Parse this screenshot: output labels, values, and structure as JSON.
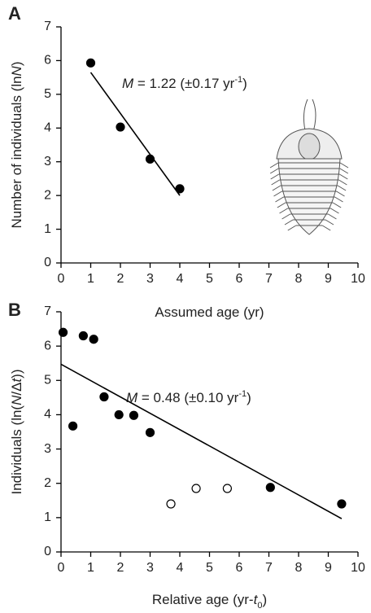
{
  "chart_data": [
    {
      "type": "scatter",
      "panel_label": "A",
      "xlabel": [
        {
          "text": "Assumed age (yr)"
        }
      ],
      "ylabel": [
        {
          "text": "Number of individuals (ln"
        },
        {
          "text": "N",
          "style": "italic"
        },
        {
          "text": ")"
        }
      ],
      "annotation": [
        {
          "text": "M",
          "style": "italic"
        },
        {
          "text": " = 1.22 (±0.17 yr"
        },
        {
          "text": "-1",
          "style": "super"
        },
        {
          "text": ")"
        }
      ],
      "series": [
        {
          "marker": "filled",
          "x": [
            1,
            2,
            3,
            4
          ],
          "y": [
            5.93,
            4.03,
            3.08,
            2.2
          ]
        }
      ],
      "fit_line": {
        "x": [
          1,
          4
        ],
        "y": [
          5.65,
          2.0
        ]
      },
      "xlim": [
        0,
        10
      ],
      "ylim": [
        0,
        7
      ],
      "xticks": [
        0,
        1,
        2,
        3,
        4,
        5,
        6,
        7,
        8,
        9,
        10
      ],
      "yticks": [
        0,
        1,
        2,
        3,
        4,
        5,
        6,
        7
      ],
      "grid": false
    },
    {
      "type": "scatter",
      "panel_label": "B",
      "xlabel": [
        {
          "text": "Relative age (yr-"
        },
        {
          "text": "t",
          "style": "italic"
        },
        {
          "text": "0",
          "style": "sub"
        },
        {
          "text": ")"
        }
      ],
      "ylabel": [
        {
          "text": "Individuals (ln("
        },
        {
          "text": "N",
          "style": "italic"
        },
        {
          "text": "/Δ"
        },
        {
          "text": "t",
          "style": "italic"
        },
        {
          "text": "))"
        }
      ],
      "annotation": [
        {
          "text": "M",
          "style": "italic"
        },
        {
          "text": " = 0.48 (±0.10 yr"
        },
        {
          "text": "-1",
          "style": "super"
        },
        {
          "text": ")"
        }
      ],
      "series": [
        {
          "marker": "filled",
          "x": [
            0.07,
            0.4,
            0.75,
            1.1,
            1.45,
            1.95,
            2.45,
            3.0,
            7.05,
            9.45
          ],
          "y": [
            6.4,
            3.67,
            6.3,
            6.2,
            4.52,
            4.0,
            3.98,
            3.48,
            1.88,
            1.4
          ]
        },
        {
          "marker": "open",
          "x": [
            3.7,
            4.55,
            5.6
          ],
          "y": [
            1.4,
            1.85,
            1.85
          ]
        }
      ],
      "fit_line": {
        "x": [
          0,
          9.45
        ],
        "y": [
          5.47,
          0.97
        ]
      },
      "xlim": [
        0,
        10
      ],
      "ylim": [
        0,
        7
      ],
      "xticks": [
        0,
        1,
        2,
        3,
        4,
        5,
        6,
        7,
        8,
        9,
        10
      ],
      "yticks": [
        0,
        1,
        2,
        3,
        4,
        5,
        6,
        7
      ],
      "grid": false
    }
  ]
}
